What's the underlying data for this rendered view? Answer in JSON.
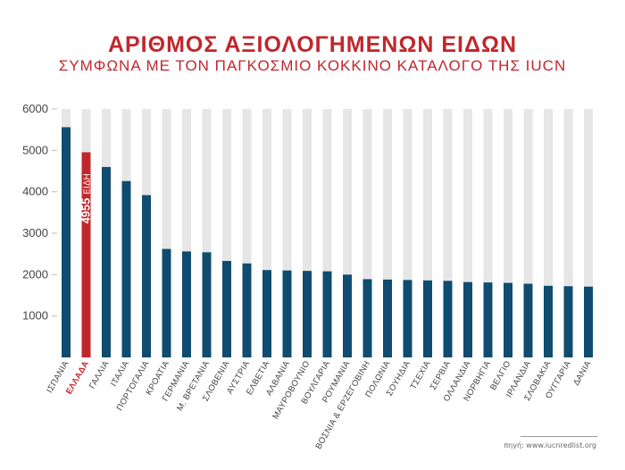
{
  "header": {
    "title": "ΑΡΙΘΜΟΣ ΑΞΙΟΛΟΓΗΜΕΝΩΝ ΕΙΔΩΝ",
    "subtitle": "ΣΥΜΦΩΝΑ ΜΕ ΤΟΝ ΠΑΓΚΟΣΜΙΟ ΚΟΚΚΙΝΟ ΚΑΤΑΛΟΓΟ ΤΗΣ IUCN"
  },
  "source": "πηγή: www.iucnredlist.org",
  "colors": {
    "bar": "#0f4c70",
    "highlight": "#c0272d",
    "track": "#e6e6e6",
    "axis_text": "#444444"
  },
  "chart_data": {
    "type": "bar",
    "title": "ΑΡΙΘΜΟΣ ΑΞΙΟΛΟΓΗΜΕΝΩΝ ΕΙΔΩΝ",
    "subtitle": "ΣΥΜΦΩΝΑ ΜΕ ΤΟΝ ΠΑΓΚΟΣΜΙΟ ΚΟΚΚΙΝΟ ΚΑΤΑΛΟΓΟ ΤΗΣ IUCN",
    "xlabel": "",
    "ylabel": "",
    "ylim": [
      0,
      6000
    ],
    "yticks": [
      1000,
      2000,
      3000,
      4000,
      5000,
      6000
    ],
    "grid": false,
    "categories": [
      "ΙΣΠΑΝΙΑ",
      "ΕΛΛΑΔΑ",
      "ΓΑΛΛΙΑ",
      "ΙΤΑΛΙΑ",
      "ΠΟΡΤΟΓΑΛΙΑ",
      "ΚΡΟΑΤΙΑ",
      "ΓΕΡΜΑΝΙΑ",
      "Μ. ΒΡΕΤΑΝΙΑ",
      "ΣΛΟΒΕΝΙΑ",
      "ΑΥΣΤΡΙΑ",
      "ΕΛΒΕΤΙΑ",
      "ΑΛΒΑΝΙΑ",
      "ΜΑΥΡΟΒΟΥΝΙΟ",
      "ΒΟΥΛΓΑΡΙΑ",
      "ΡΟΥΜΑΝΙΑ",
      "ΒΟΣΝΙΑ & ΕΡΖΕΓΟΒΙΝΗ",
      "ΠΟΛΩΝΙΑ",
      "ΣΟΥΗΔΙΑ",
      "ΤΣΕΧΙΑ",
      "ΣΕΡΒΙΑ",
      "ΟΛΛΑΝΔΙΑ",
      "ΝΟΡΒΗΓΙΑ",
      "ΒΕΛΓΙΟ",
      "ΙΡΛΑΝΔΙΑ",
      "ΣΛΟΒΑΚΙΑ",
      "ΟΥΓΓΑΡΙΑ",
      "ΔΑΝΙΑ"
    ],
    "values": [
      5560,
      4955,
      4600,
      4260,
      3920,
      2620,
      2560,
      2540,
      2330,
      2270,
      2110,
      2100,
      2090,
      2080,
      2000,
      1890,
      1880,
      1870,
      1860,
      1850,
      1820,
      1810,
      1800,
      1780,
      1730,
      1720,
      1710
    ],
    "highlight_index": 1,
    "annotation": {
      "value": "4955",
      "unit": "ΕΙΔΗ"
    }
  }
}
